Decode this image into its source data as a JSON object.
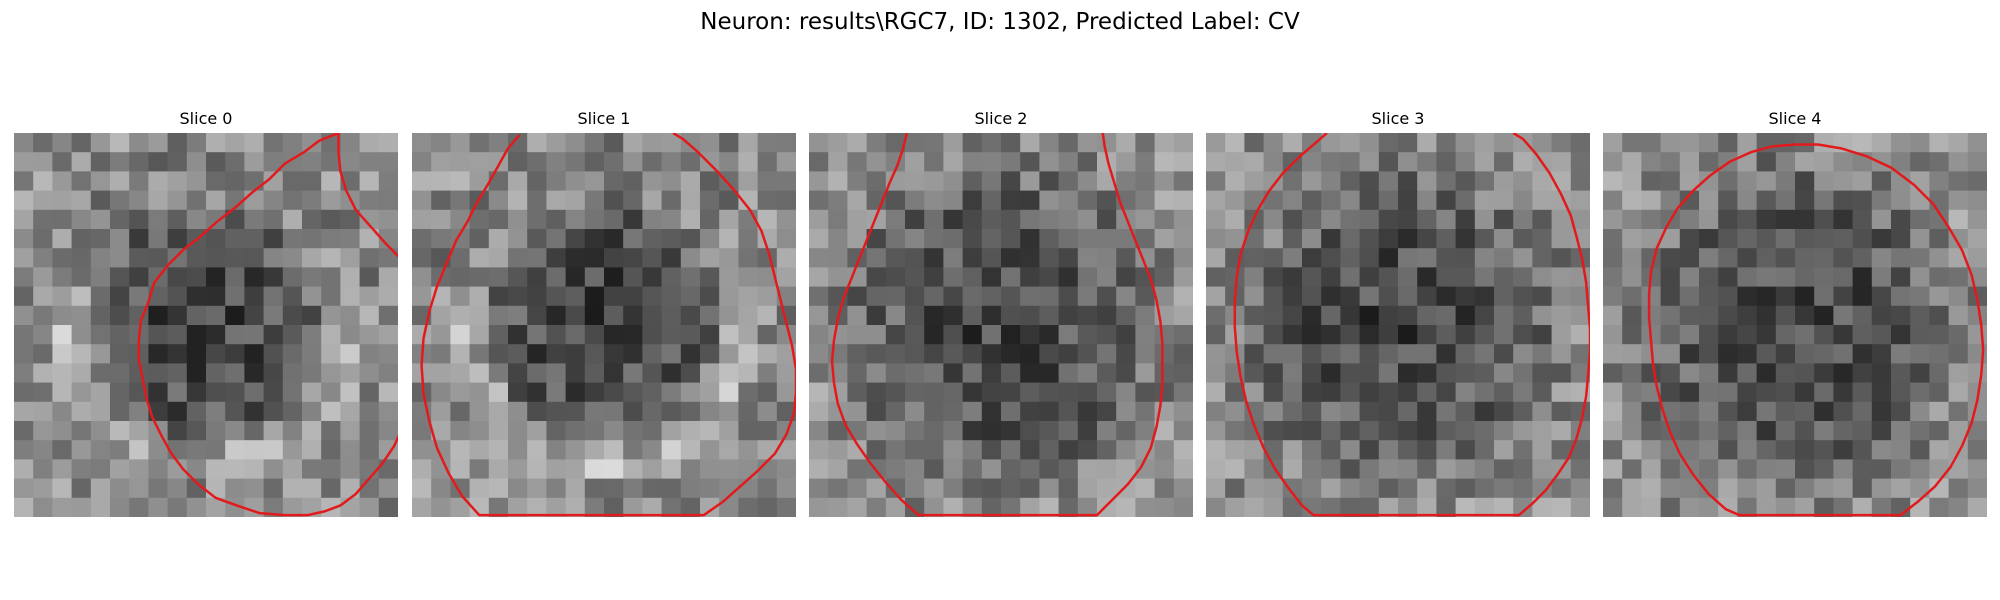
{
  "suptitle": "Neuron: results\\RGC7, ID: 1302, Predicted Label: CV",
  "slices": [
    {
      "title": "Slice 0",
      "contour_color": "#e31a1c",
      "contour": [
        [
          16.9,
          0
        ],
        [
          15.9,
          0.4
        ],
        [
          15.1,
          1.0
        ],
        [
          14.1,
          1.6
        ],
        [
          13.3,
          2.4
        ],
        [
          12.4,
          3.1
        ],
        [
          11.5,
          3.9
        ],
        [
          10.6,
          4.6
        ],
        [
          9.7,
          5.4
        ],
        [
          8.8,
          6.1
        ],
        [
          8.0,
          6.9
        ],
        [
          7.3,
          7.8
        ],
        [
          7.0,
          8.8
        ],
        [
          6.6,
          9.8
        ],
        [
          6.5,
          10.8
        ],
        [
          6.5,
          11.8
        ],
        [
          6.7,
          12.8
        ],
        [
          6.9,
          13.8
        ],
        [
          7.2,
          14.8
        ],
        [
          7.7,
          15.8
        ],
        [
          8.2,
          16.7
        ],
        [
          8.8,
          17.5
        ],
        [
          9.6,
          18.3
        ],
        [
          10.5,
          19.0
        ],
        [
          11.6,
          19.4
        ],
        [
          12.8,
          19.8
        ],
        [
          14.1,
          19.9
        ],
        [
          15.3,
          19.9
        ],
        [
          16.2,
          19.7
        ],
        [
          17.0,
          19.4
        ],
        [
          17.8,
          18.8
        ],
        [
          18.5,
          18.0
        ],
        [
          19.2,
          17.2
        ],
        [
          19.8,
          16.3
        ],
        [
          20.3,
          15.2
        ],
        [
          20.8,
          14.1
        ],
        [
          21.2,
          13.0
        ],
        [
          21.4,
          11.9
        ],
        [
          21.6,
          10.8
        ],
        [
          21.5,
          9.7
        ],
        [
          21.2,
          8.6
        ],
        [
          20.8,
          7.6
        ],
        [
          20.2,
          6.6
        ],
        [
          19.4,
          5.8
        ],
        [
          18.6,
          4.9
        ],
        [
          17.8,
          4.0
        ],
        [
          17.3,
          3.0
        ],
        [
          17.0,
          2.0
        ],
        [
          16.9,
          1.0
        ],
        [
          16.9,
          0
        ]
      ]
    },
    {
      "title": "Slice 1",
      "contour_color": "#e31a1c",
      "contour": [
        [
          5.6,
          0.1
        ],
        [
          5.0,
          0.8
        ],
        [
          4.5,
          1.7
        ],
        [
          4.0,
          2.6
        ],
        [
          3.4,
          3.6
        ],
        [
          2.9,
          4.6
        ],
        [
          2.3,
          5.6
        ],
        [
          1.8,
          6.8
        ],
        [
          1.3,
          8.0
        ],
        [
          0.9,
          9.3
        ],
        [
          0.6,
          10.7
        ],
        [
          0.5,
          12.1
        ],
        [
          0.6,
          13.6
        ],
        [
          0.9,
          15.0
        ],
        [
          1.3,
          16.4
        ],
        [
          1.9,
          17.7
        ],
        [
          2.6,
          18.9
        ],
        [
          3.5,
          19.9
        ],
        [
          5.2,
          19.9
        ],
        [
          15.2,
          19.9
        ],
        [
          16.2,
          19.2
        ],
        [
          17.1,
          18.4
        ],
        [
          18.0,
          17.6
        ],
        [
          18.9,
          16.7
        ],
        [
          19.5,
          15.7
        ],
        [
          19.9,
          14.6
        ],
        [
          20.0,
          13.5
        ],
        [
          20.0,
          12.3
        ],
        [
          19.8,
          11.1
        ],
        [
          19.5,
          9.9
        ],
        [
          19.2,
          8.7
        ],
        [
          18.9,
          7.5
        ],
        [
          18.6,
          6.3
        ],
        [
          18.2,
          5.1
        ],
        [
          17.6,
          4.0
        ],
        [
          16.8,
          3.0
        ],
        [
          15.9,
          2.0
        ],
        [
          14.9,
          1.0
        ],
        [
          14.1,
          0.3
        ],
        [
          13.6,
          0
        ]
      ]
    },
    {
      "title": "Slice 2",
      "contour_color": "#e31a1c",
      "contour": [
        [
          5.1,
          0
        ],
        [
          4.9,
          0.8
        ],
        [
          4.6,
          1.7
        ],
        [
          4.2,
          2.6
        ],
        [
          3.8,
          3.6
        ],
        [
          3.4,
          4.6
        ],
        [
          3.0,
          5.6
        ],
        [
          2.6,
          6.6
        ],
        [
          2.2,
          7.6
        ],
        [
          1.8,
          8.6
        ],
        [
          1.5,
          9.7
        ],
        [
          1.3,
          10.8
        ],
        [
          1.2,
          11.9
        ],
        [
          1.3,
          13.0
        ],
        [
          1.5,
          14.1
        ],
        [
          1.9,
          15.2
        ],
        [
          2.5,
          16.2
        ],
        [
          3.2,
          17.2
        ],
        [
          4.0,
          18.2
        ],
        [
          4.8,
          19.1
        ],
        [
          5.7,
          19.9
        ],
        [
          15.0,
          19.9
        ],
        [
          15.8,
          19.1
        ],
        [
          16.6,
          18.3
        ],
        [
          17.3,
          17.4
        ],
        [
          17.8,
          16.4
        ],
        [
          18.1,
          15.3
        ],
        [
          18.3,
          14.2
        ],
        [
          18.4,
          13.1
        ],
        [
          18.4,
          12.0
        ],
        [
          18.4,
          10.9
        ],
        [
          18.3,
          9.8
        ],
        [
          18.1,
          8.7
        ],
        [
          17.8,
          7.6
        ],
        [
          17.4,
          6.6
        ],
        [
          17.0,
          5.6
        ],
        [
          16.6,
          4.6
        ],
        [
          16.2,
          3.6
        ],
        [
          15.9,
          2.6
        ],
        [
          15.6,
          1.6
        ],
        [
          15.4,
          0.7
        ],
        [
          15.3,
          0
        ]
      ]
    },
    {
      "title": "Slice 3",
      "contour_color": "#e31a1c",
      "contour": [
        [
          6.3,
          0
        ],
        [
          5.6,
          0.6
        ],
        [
          4.8,
          1.3
        ],
        [
          4.0,
          2.1
        ],
        [
          3.3,
          3.0
        ],
        [
          2.7,
          4.0
        ],
        [
          2.2,
          5.1
        ],
        [
          1.8,
          6.3
        ],
        [
          1.6,
          7.5
        ],
        [
          1.5,
          8.8
        ],
        [
          1.5,
          10.1
        ],
        [
          1.6,
          11.4
        ],
        [
          1.8,
          12.7
        ],
        [
          2.1,
          14.0
        ],
        [
          2.5,
          15.2
        ],
        [
          3.0,
          16.4
        ],
        [
          3.6,
          17.5
        ],
        [
          4.3,
          18.5
        ],
        [
          5.0,
          19.4
        ],
        [
          5.6,
          19.9
        ],
        [
          16.3,
          19.9
        ],
        [
          17.0,
          19.3
        ],
        [
          17.7,
          18.6
        ],
        [
          18.3,
          17.8
        ],
        [
          18.9,
          16.9
        ],
        [
          19.3,
          15.9
        ],
        [
          19.6,
          14.8
        ],
        [
          19.8,
          13.7
        ],
        [
          19.9,
          12.6
        ],
        [
          20.0,
          11.4
        ],
        [
          20.0,
          10.2
        ],
        [
          19.9,
          9.0
        ],
        [
          19.8,
          7.8
        ],
        [
          19.6,
          6.6
        ],
        [
          19.3,
          5.4
        ],
        [
          19.0,
          4.3
        ],
        [
          18.5,
          3.2
        ],
        [
          17.9,
          2.1
        ],
        [
          17.2,
          1.1
        ],
        [
          16.5,
          0.3
        ],
        [
          16.0,
          0
        ]
      ]
    },
    {
      "title": "Slice 4",
      "contour_color": "#e31a1c",
      "contour": [
        [
          10.0,
          0.6
        ],
        [
          8.8,
          0.7
        ],
        [
          7.7,
          1.0
        ],
        [
          6.6,
          1.5
        ],
        [
          5.6,
          2.2
        ],
        [
          4.7,
          3.0
        ],
        [
          3.9,
          3.9
        ],
        [
          3.3,
          4.9
        ],
        [
          2.8,
          6.0
        ],
        [
          2.5,
          7.2
        ],
        [
          2.4,
          8.4
        ],
        [
          2.4,
          9.6
        ],
        [
          2.5,
          10.8
        ],
        [
          2.6,
          12.0
        ],
        [
          2.8,
          13.2
        ],
        [
          3.1,
          14.4
        ],
        [
          3.5,
          15.6
        ],
        [
          4.0,
          16.7
        ],
        [
          4.7,
          17.8
        ],
        [
          5.5,
          18.8
        ],
        [
          6.4,
          19.6
        ],
        [
          7.1,
          19.9
        ],
        [
          15.5,
          19.9
        ],
        [
          16.4,
          19.2
        ],
        [
          17.3,
          18.4
        ],
        [
          18.1,
          17.4
        ],
        [
          18.7,
          16.3
        ],
        [
          19.2,
          15.1
        ],
        [
          19.5,
          13.9
        ],
        [
          19.7,
          12.6
        ],
        [
          19.8,
          11.3
        ],
        [
          19.7,
          10.0
        ],
        [
          19.5,
          8.7
        ],
        [
          19.2,
          7.4
        ],
        [
          18.7,
          6.1
        ],
        [
          18.0,
          4.9
        ],
        [
          17.2,
          3.7
        ],
        [
          16.2,
          2.7
        ],
        [
          15.0,
          1.8
        ],
        [
          13.7,
          1.2
        ],
        [
          12.4,
          0.8
        ],
        [
          11.2,
          0.6
        ],
        [
          10.0,
          0.6
        ]
      ]
    }
  ]
}
